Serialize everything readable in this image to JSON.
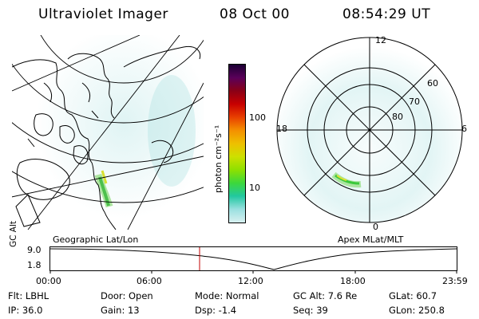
{
  "header": {
    "title": "Ultraviolet Imager",
    "date": "08 Oct 00",
    "time": "08:54:29 UT"
  },
  "colorbar": {
    "unit_label": "photon cm⁻²s⁻¹",
    "ticks": [
      "100",
      "10"
    ],
    "colors": [
      "#1b0033",
      "#5a005a",
      "#8a0016",
      "#c80000",
      "#e84000",
      "#f49000",
      "#eec000",
      "#cde000",
      "#8ee000",
      "#3cd83c",
      "#22c8a0",
      "#9ae0e0",
      "#d8f0f0"
    ]
  },
  "left_map": {
    "caption": "Geographic Lat/Lon"
  },
  "right_map": {
    "caption": "Apex MLat/MLT",
    "mlt_labels": {
      "top": "12",
      "left": "18",
      "right": "6",
      "bottom": "0"
    },
    "lat_labels": [
      "60",
      "70",
      "80"
    ]
  },
  "alt_plot": {
    "ylabel": "GC Alt",
    "yticks": [
      "9.0",
      "1.8"
    ],
    "xticks": [
      "00:00",
      "06:00",
      "12:00",
      "18:00",
      "23:59"
    ],
    "marker_time": "08:54"
  },
  "info": {
    "flt": "Flt: LBHL",
    "ip": "IP: 36.0",
    "door": "Door: Open",
    "gain": "Gain: 13",
    "mode": "Mode: Normal",
    "dsp": "Dsp:  -1.4",
    "gcalt": "GC Alt: 7.6 Re",
    "seq": "Seq: 39",
    "glat": "GLat:  60.7",
    "glon": "GLon: 250.8"
  }
}
